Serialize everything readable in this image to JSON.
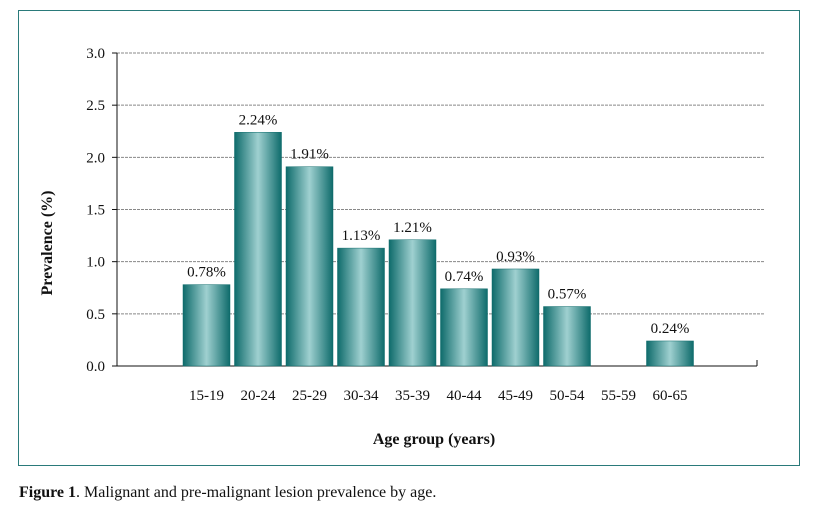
{
  "chart_data": {
    "type": "bar",
    "title": "",
    "xlabel": "Age group (years)",
    "ylabel": "Prevalence (%)",
    "ylim": [
      0,
      3.0
    ],
    "yticks": [
      "0.0",
      "0.5",
      "1.0",
      "1.5",
      "2.0",
      "2.5",
      "3.0"
    ],
    "grid": true,
    "categories": [
      "15-19",
      "20-24",
      "25-29",
      "30-34",
      "35-39",
      "40-44",
      "45-49",
      "50-54",
      "55-59",
      "60-65"
    ],
    "values": [
      0.78,
      2.24,
      1.91,
      1.13,
      1.21,
      0.74,
      0.93,
      0.57,
      null,
      0.24
    ],
    "data_labels": [
      "0.78%",
      "2.24%",
      "1.91%",
      "1.13%",
      "1.21%",
      "0.74%",
      "0.93%",
      "0.57%",
      "",
      "0.24%"
    ],
    "colors": {
      "bar_edge": "#0e6b6b",
      "bar_center": "#9fd0d0",
      "frame": "#2a7a7a",
      "grid": "#888888"
    }
  },
  "caption": {
    "label": "Figure 1",
    "text": ". Malignant and pre-malignant lesion prevalence by age."
  }
}
